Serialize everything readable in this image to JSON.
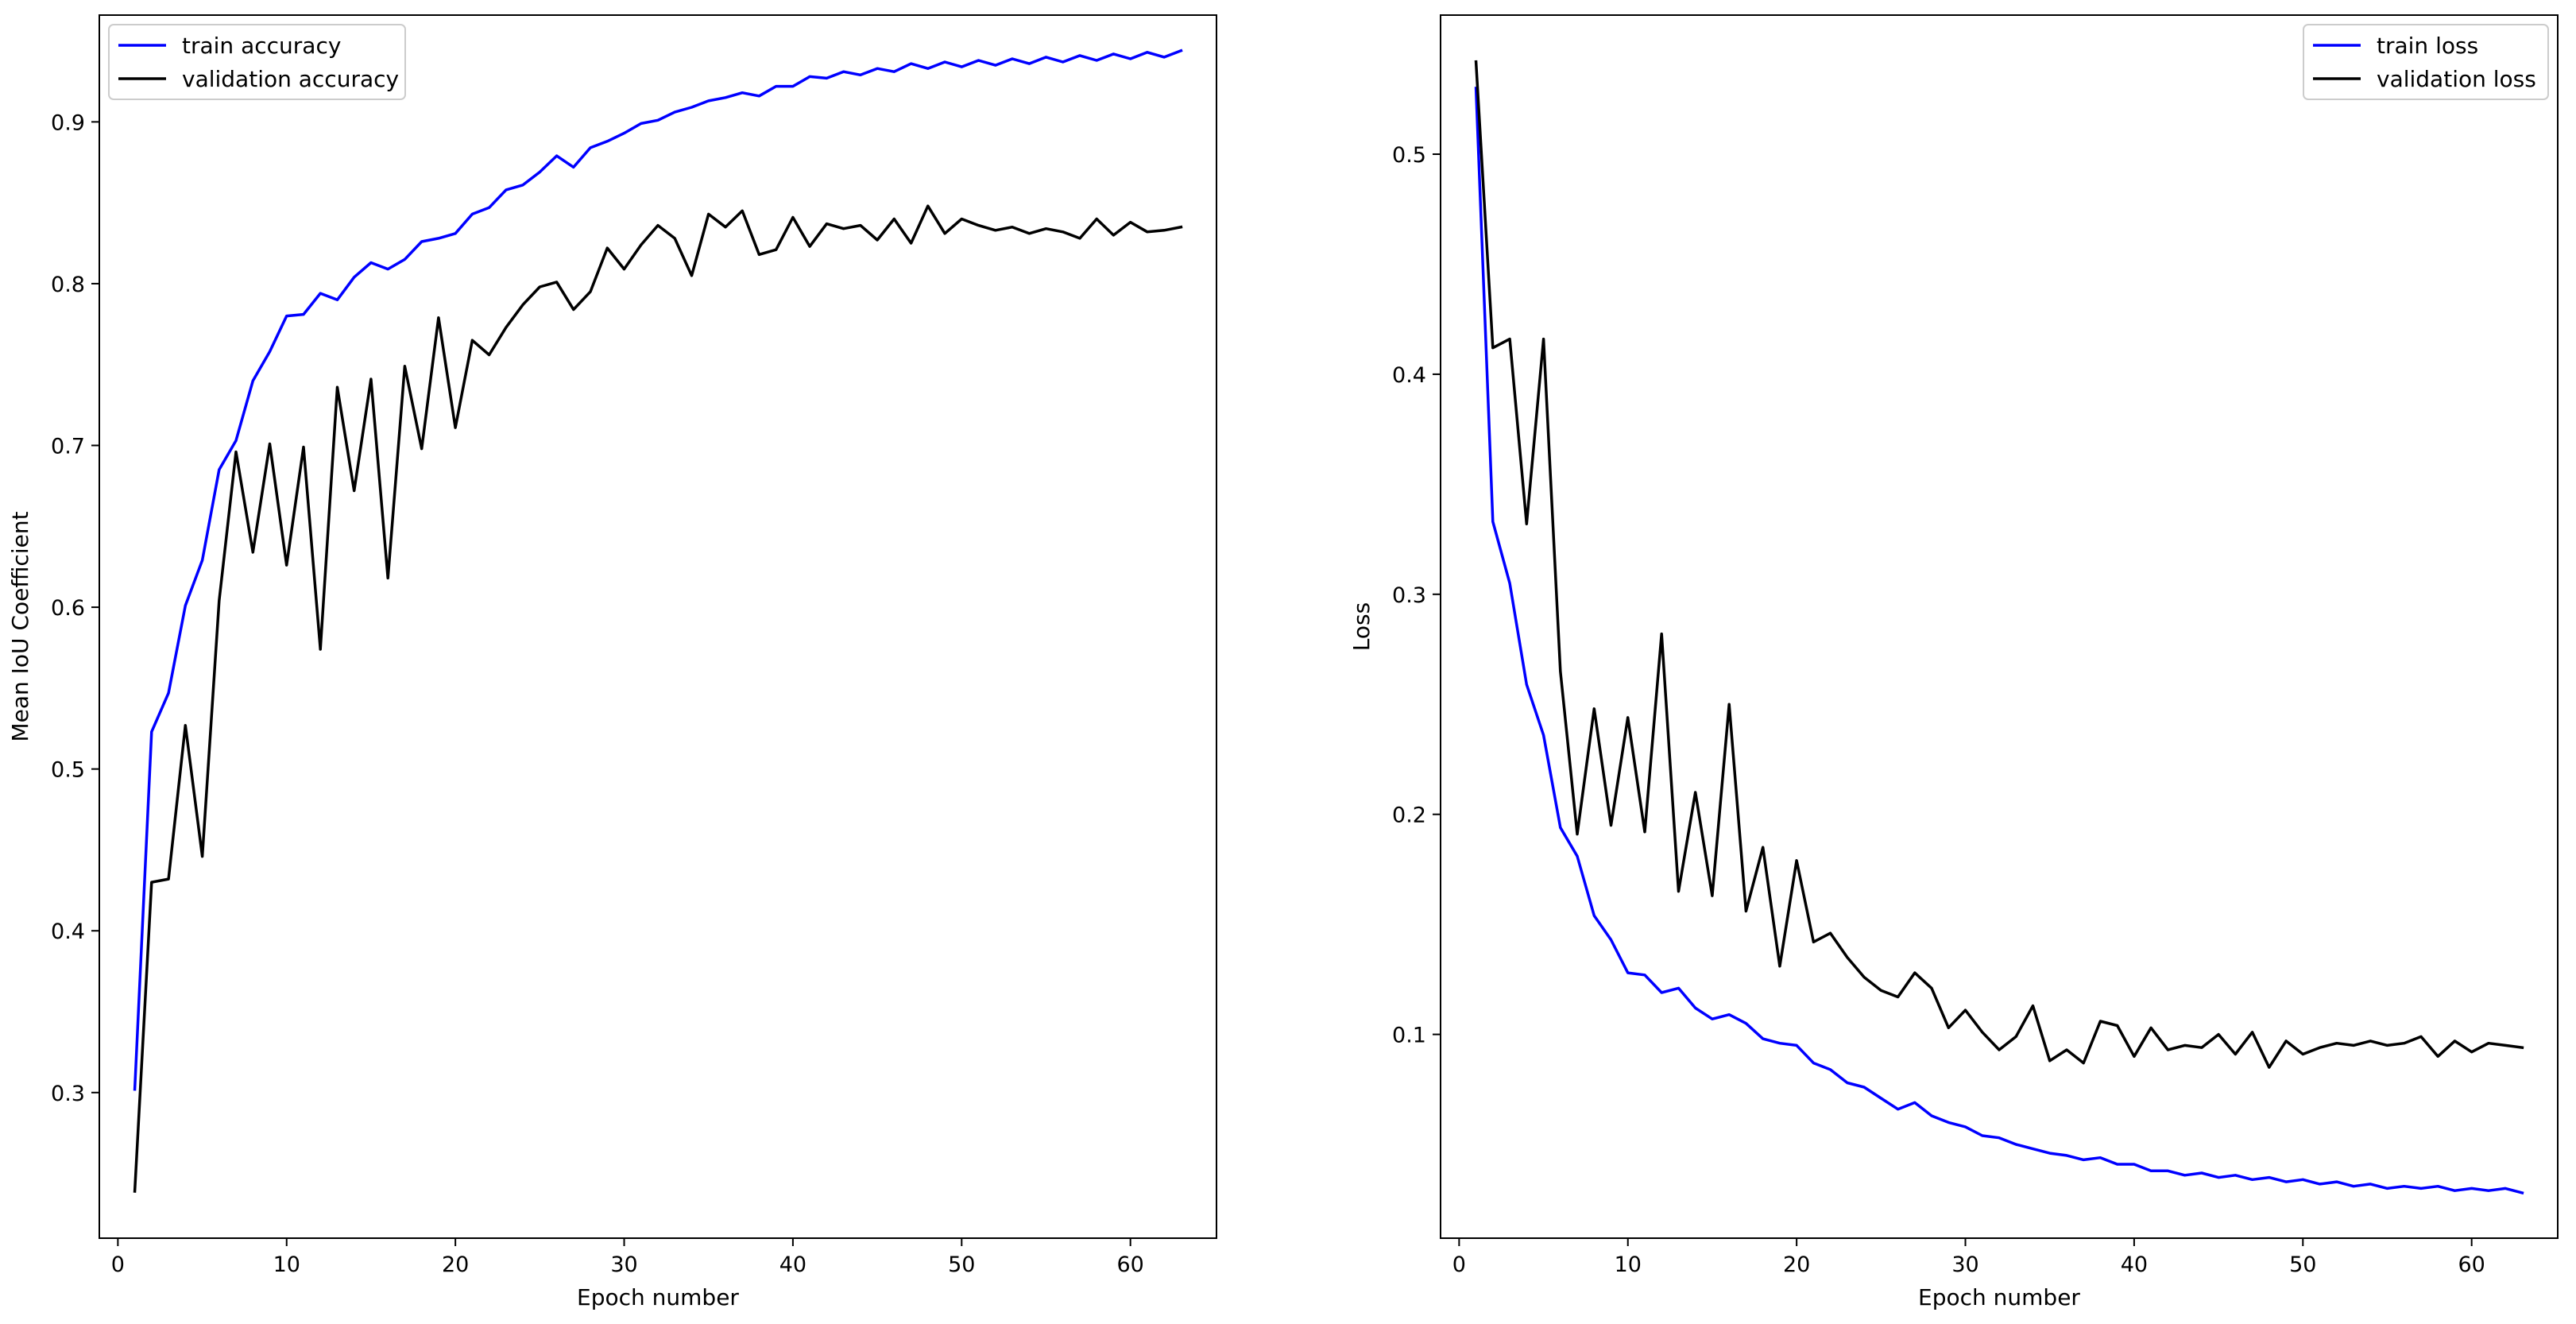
{
  "chart_data": [
    {
      "type": "line",
      "xlabel": "Epoch number",
      "ylabel": "Mean IoU Coefficient",
      "xlim": [
        -1.1,
        65.1
      ],
      "ylim": [
        0.21,
        0.966
      ],
      "xticks": [
        0,
        10,
        20,
        30,
        40,
        50,
        60
      ],
      "yticks": [
        0.3,
        0.4,
        0.5,
        0.6,
        0.7,
        0.8,
        0.9
      ],
      "grid": false,
      "legend_position": "top-left",
      "x": [
        1,
        2,
        3,
        4,
        5,
        6,
        7,
        8,
        9,
        10,
        11,
        12,
        13,
        14,
        15,
        16,
        17,
        18,
        19,
        20,
        21,
        22,
        23,
        24,
        25,
        26,
        27,
        28,
        29,
        30,
        31,
        32,
        33,
        34,
        35,
        36,
        37,
        38,
        39,
        40,
        41,
        42,
        43,
        44,
        45,
        46,
        47,
        48,
        49,
        50,
        51,
        52,
        53,
        54,
        55,
        56,
        57,
        58,
        59,
        60,
        61,
        62,
        63
      ],
      "series": [
        {
          "name": "train accuracy",
          "color": "#0000ff",
          "values": [
            0.302,
            0.523,
            0.547,
            0.601,
            0.629,
            0.685,
            0.703,
            0.74,
            0.758,
            0.78,
            0.781,
            0.794,
            0.79,
            0.804,
            0.813,
            0.809,
            0.815,
            0.826,
            0.828,
            0.831,
            0.843,
            0.847,
            0.858,
            0.861,
            0.869,
            0.879,
            0.872,
            0.884,
            0.888,
            0.893,
            0.899,
            0.901,
            0.906,
            0.909,
            0.913,
            0.915,
            0.918,
            0.916,
            0.922,
            0.922,
            0.928,
            0.927,
            0.931,
            0.929,
            0.933,
            0.931,
            0.936,
            0.933,
            0.937,
            0.934,
            0.938,
            0.935,
            0.939,
            0.936,
            0.94,
            0.937,
            0.941,
            0.938,
            0.942,
            0.939,
            0.943,
            0.94,
            0.944
          ]
        },
        {
          "name": "validation accuracy",
          "color": "#000000",
          "values": [
            0.239,
            0.43,
            0.432,
            0.527,
            0.446,
            0.604,
            0.696,
            0.634,
            0.701,
            0.626,
            0.699,
            0.574,
            0.736,
            0.672,
            0.741,
            0.618,
            0.749,
            0.698,
            0.779,
            0.711,
            0.765,
            0.756,
            0.773,
            0.787,
            0.798,
            0.801,
            0.784,
            0.795,
            0.822,
            0.809,
            0.824,
            0.836,
            0.828,
            0.805,
            0.843,
            0.835,
            0.845,
            0.818,
            0.821,
            0.841,
            0.823,
            0.837,
            0.834,
            0.836,
            0.827,
            0.84,
            0.825,
            0.848,
            0.831,
            0.84,
            0.836,
            0.833,
            0.835,
            0.831,
            0.834,
            0.832,
            0.828,
            0.84,
            0.83,
            0.838,
            0.832,
            0.833,
            0.835
          ]
        }
      ]
    },
    {
      "type": "line",
      "xlabel": "Epoch number",
      "ylabel": "Loss",
      "xlim": [
        -1.1,
        65.1
      ],
      "ylim": [
        0.0074,
        0.5632
      ],
      "xticks": [
        0,
        10,
        20,
        30,
        40,
        50,
        60
      ],
      "yticks": [
        0.1,
        0.2,
        0.3,
        0.4,
        0.5
      ],
      "grid": false,
      "legend_position": "top-right",
      "x": [
        1,
        2,
        3,
        4,
        5,
        6,
        7,
        8,
        9,
        10,
        11,
        12,
        13,
        14,
        15,
        16,
        17,
        18,
        19,
        20,
        21,
        22,
        23,
        24,
        25,
        26,
        27,
        28,
        29,
        30,
        31,
        32,
        33,
        34,
        35,
        36,
        37,
        38,
        39,
        40,
        41,
        42,
        43,
        44,
        45,
        46,
        47,
        48,
        49,
        50,
        51,
        52,
        53,
        54,
        55,
        56,
        57,
        58,
        59,
        60,
        61,
        62,
        63
      ],
      "series": [
        {
          "name": "train loss",
          "color": "#0000ff",
          "values": [
            0.53,
            0.333,
            0.305,
            0.259,
            0.236,
            0.194,
            0.181,
            0.154,
            0.143,
            0.128,
            0.127,
            0.119,
            0.121,
            0.112,
            0.107,
            0.109,
            0.105,
            0.098,
            0.096,
            0.095,
            0.087,
            0.084,
            0.078,
            0.076,
            0.071,
            0.066,
            0.069,
            0.063,
            0.06,
            0.058,
            0.054,
            0.053,
            0.05,
            0.048,
            0.046,
            0.045,
            0.043,
            0.044,
            0.041,
            0.041,
            0.038,
            0.038,
            0.036,
            0.037,
            0.035,
            0.036,
            0.034,
            0.035,
            0.033,
            0.034,
            0.032,
            0.033,
            0.031,
            0.032,
            0.03,
            0.031,
            0.03,
            0.031,
            0.029,
            0.03,
            0.029,
            0.03,
            0.028
          ]
        },
        {
          "name": "validation loss",
          "color": "#000000",
          "values": [
            0.542,
            0.412,
            0.416,
            0.332,
            0.416,
            0.265,
            0.191,
            0.248,
            0.195,
            0.244,
            0.192,
            0.282,
            0.165,
            0.21,
            0.163,
            0.25,
            0.156,
            0.185,
            0.131,
            0.179,
            0.142,
            0.146,
            0.135,
            0.126,
            0.12,
            0.117,
            0.128,
            0.121,
            0.103,
            0.111,
            0.101,
            0.093,
            0.099,
            0.113,
            0.088,
            0.093,
            0.087,
            0.106,
            0.104,
            0.09,
            0.103,
            0.093,
            0.095,
            0.094,
            0.1,
            0.091,
            0.101,
            0.085,
            0.097,
            0.091,
            0.094,
            0.096,
            0.095,
            0.097,
            0.095,
            0.096,
            0.099,
            0.09,
            0.097,
            0.092,
            0.096,
            0.095,
            0.094
          ]
        }
      ]
    }
  ]
}
